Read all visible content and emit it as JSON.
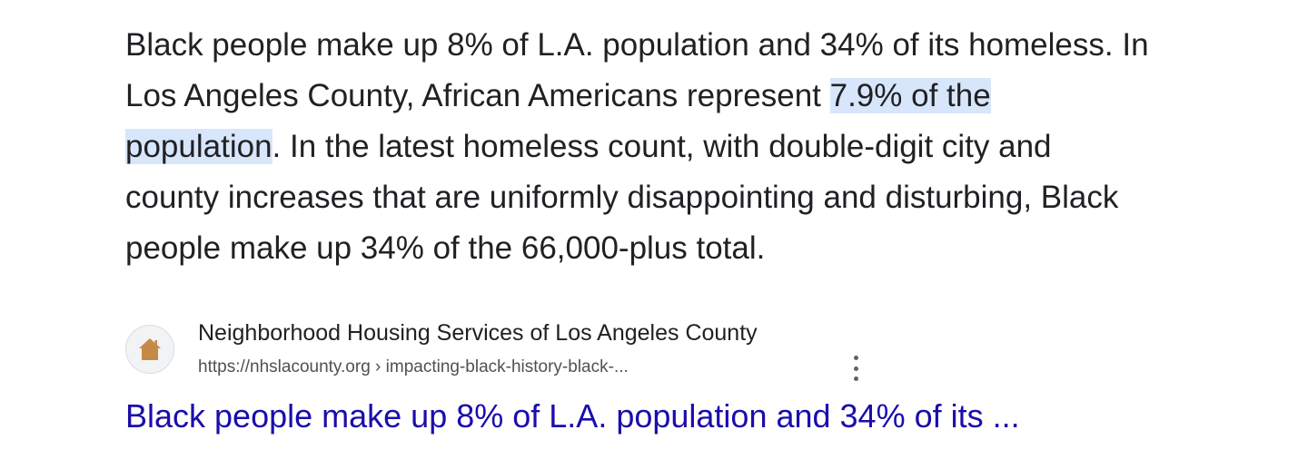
{
  "snippet": {
    "line1": "Black people make up 8% of L.A. population and 34% of its homeless. In",
    "line2_pre": "Los Angeles County, African Americans represent ",
    "line2_hl": "7.9% of the",
    "line3_hl": "population",
    "line3_post": ". In the latest homeless count, with double-digit city and",
    "line4": "county increases that are uniformly disappointing and disturbing, Black",
    "line5": "people make up 34% of the 66,000-plus total."
  },
  "result": {
    "site_name": "Neighborhood Housing Services of Los Angeles County",
    "url": "https://nhslacounty.org › impacting-black-history-black-...",
    "title": "Black people make up 8% of L.A. population and 34% of its ...",
    "favicon_icon": "house-icon",
    "menu_icon": "more-vert-icon"
  },
  "colors": {
    "link": "#1a0dab",
    "highlight": "#d8e6fb",
    "favicon": "#c58a47"
  }
}
